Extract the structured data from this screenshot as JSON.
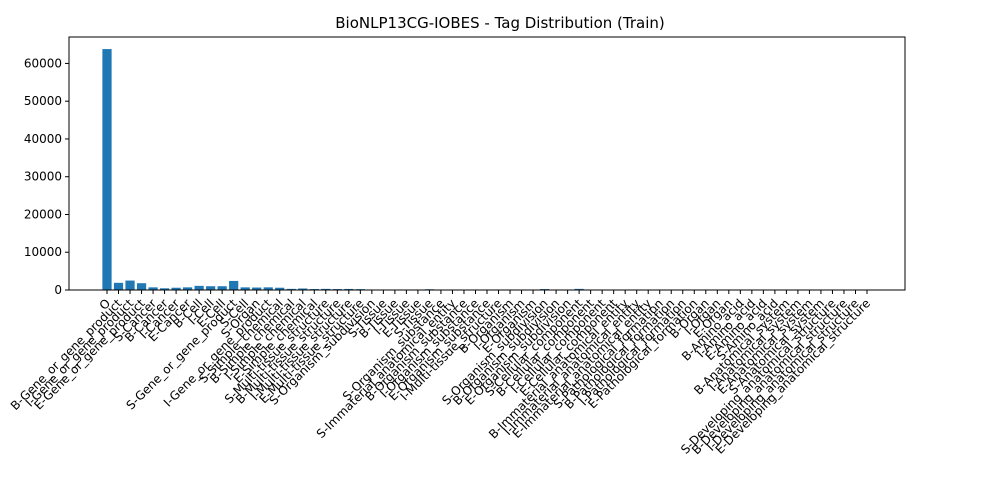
{
  "chart_data": {
    "type": "bar",
    "title": "BioNLP13CG-IOBES - Tag Distribution (Train)",
    "xlabel": "",
    "ylabel": "",
    "ylim": [
      0,
      67000
    ],
    "yticks": [
      0,
      10000,
      20000,
      30000,
      40000,
      50000,
      60000
    ],
    "grid": false,
    "legend": "none",
    "bar_color": "#1f77b4",
    "categories": [
      "O",
      "B-Gene_or_gene_product",
      "I-Gene_or_gene_product",
      "E-Gene_or_gene_product",
      "S-Cancer",
      "B-Cancer",
      "I-Cancer",
      "E-Cancer",
      "B-Cell",
      "I-Cell",
      "E-Cell",
      "S-Gene_or_gene_product",
      "S-Cell",
      "S-Organ",
      "I-Gene_or_gene_product",
      "S-Simple_chemical",
      "B-Simple_chemical",
      "I-Simple_chemical",
      "E-Simple_chemical",
      "S-Multi-tissue_structure",
      "B-Multi-tissue_structure",
      "I-Multi-tissue_structure",
      "E-Multi-tissue_structure",
      "S-Organism_subdivision",
      "S-Tissue",
      "B-Tissue",
      "I-Tissue",
      "E-Tissue",
      "S-Tissue",
      "S-Organism_substance",
      "S-Immaterial_anatomical_entity",
      "B-Organism_substance",
      "I-Organism_substance",
      "E-Organism_substance",
      "I-Multi-tissue_structure",
      "B-Organism",
      "I-Organism",
      "E-Organism",
      "S-Organism_subdivision",
      "B-Organism_subdivision",
      "E-Organism_subdivision",
      "S-Cellular_component",
      "B-Cellular_component",
      "I-Cellular_component",
      "E-Cellular_component",
      "B-Immaterial_anatomical_entity",
      "I-Immaterial_anatomical_entity",
      "E-Immaterial_anatomical_entity",
      "S-Pathological_formation",
      "B-Pathological_formation",
      "I-Pathological_formation",
      "E-Pathological_formation",
      "B-Organ",
      "I-Organ",
      "E-Organ",
      "B-Amino_acid",
      "I-Amino_acid",
      "E-Amino_acid",
      "S-Amino_acid",
      "B-Anatomical_system",
      "I-Anatomical_system",
      "E-Anatomical_system",
      "S-Anatomical_system",
      "S-Developing_anatomical_structure",
      "B-Developing_anatomical_structure",
      "I-Developing_anatomical_structure",
      "E-Developing_anatomical_structure"
    ],
    "values": [
      63800,
      1900,
      2500,
      1800,
      700,
      450,
      600,
      700,
      1100,
      1000,
      1000,
      2400,
      700,
      650,
      700,
      600,
      300,
      400,
      250,
      300,
      250,
      280,
      230,
      80,
      60,
      50,
      40,
      40,
      200,
      80,
      40,
      40,
      30,
      30,
      30,
      20,
      15,
      15,
      250,
      30,
      20,
      300,
      20,
      15,
      15,
      15,
      10,
      10,
      10,
      8,
      8,
      8,
      8,
      6,
      6,
      5,
      5,
      5,
      5,
      4,
      4,
      4,
      4,
      3,
      3,
      3,
      3
    ]
  }
}
